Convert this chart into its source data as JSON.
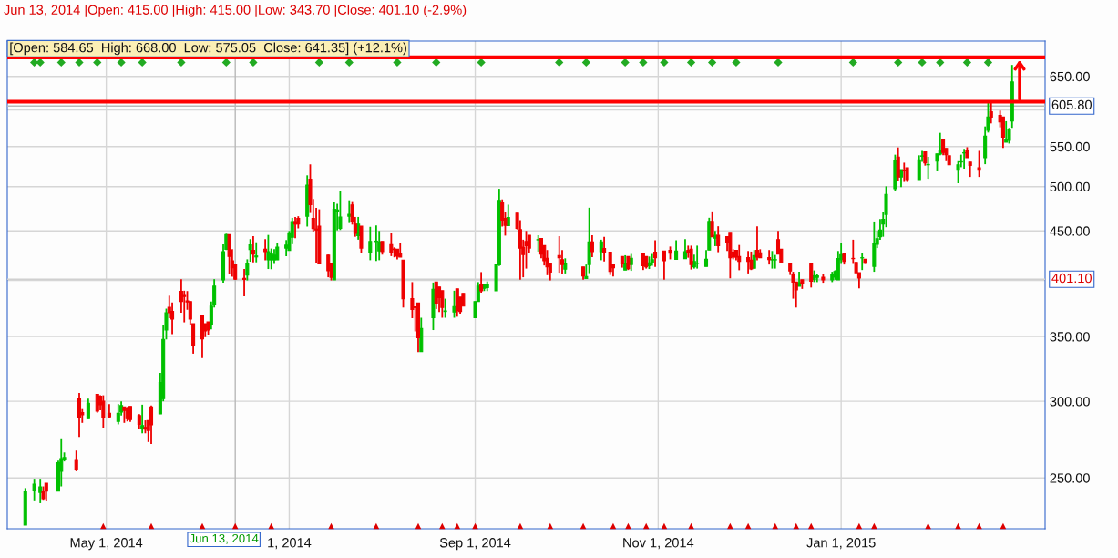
{
  "chart_data": {
    "type": "candlestick",
    "annotations": [
      "Jun 13, 2014 |Open: 415.00 |High: 415.00 |Low: 343.70 |Close: 401.10 (-2.9%)",
      "[Open: 584.65  High: 668.00  Low: 575.05  Close: 641.35] (+12.1%)"
    ],
    "log": "y",
    "grid": true,
    "xlim": [
      "2014-03-29",
      "2015-03-10"
    ],
    "xticks": [
      {
        "value": "2014-05-01",
        "label": "May 1, 2014"
      },
      {
        "value": "2014-07-01",
        "label": "1, 2014"
      },
      {
        "value": "2014-09-01",
        "label": "Sep 1, 2014"
      },
      {
        "value": "2014-11-01",
        "label": "Nov 1, 2014"
      },
      {
        "value": "2015-01-01",
        "label": "Jan 1, 2015"
      }
    ],
    "ylim": [
      221.5,
      707
    ],
    "yticks": [
      {
        "value": 250,
        "label": "250.00"
      },
      {
        "value": 300,
        "label": "300.00"
      },
      {
        "value": 350,
        "label": "350.00"
      },
      {
        "value": 400,
        "label": null
      },
      {
        "value": 450,
        "label": "450.00"
      },
      {
        "value": 500,
        "label": "500.00"
      },
      {
        "value": 550,
        "label": "550.00"
      },
      {
        "value": 600,
        "label": null
      },
      {
        "value": 650,
        "label": "650.00"
      }
    ],
    "ref_lines": [
      {
        "axis": "y",
        "value": 680,
        "color": "#ff0000"
      },
      {
        "axis": "y",
        "value": 612,
        "color": "#ff0000"
      },
      {
        "axis": "y",
        "value": 605.8,
        "label": "605.80",
        "color": "#b8b8b8"
      },
      {
        "axis": "y",
        "value": 401.1,
        "label": "401.10",
        "color": "#d0d0d0"
      },
      {
        "axis": "x",
        "value": "2014-06-13",
        "label": "Jun 13, 2014",
        "color": "#b8b8b8"
      }
    ],
    "series": [
      {
        "color": "#00c000",
        "x": [
          "2014-04-04",
          "2014-04-07",
          "2014-04-09",
          "2014-04-15",
          "2014-04-16",
          "2014-04-17",
          "2014-04-25",
          "2014-05-05",
          "2014-05-06",
          "2014-05-13",
          "2014-05-19",
          "2014-05-20",
          "2014-05-21",
          "2014-06-05",
          "2014-06-06",
          "2014-06-09",
          "2014-06-10",
          "2014-06-17",
          "2014-06-18",
          "2014-06-20",
          "2014-06-24",
          "2014-06-25",
          "2014-06-26",
          "2014-06-27",
          "2014-06-30",
          "2014-07-01",
          "2014-07-02",
          "2014-07-07",
          "2014-07-16",
          "2014-07-17",
          "2014-07-18",
          "2014-07-21",
          "2014-07-24",
          "2014-07-28",
          "2014-07-30",
          "2014-07-31",
          "2014-08-14",
          "2014-08-18",
          "2014-08-22",
          "2014-08-25",
          "2014-09-01",
          "2014-09-02",
          "2014-09-04",
          "2014-09-05",
          "2014-09-08",
          "2014-09-09",
          "2014-09-12",
          "2014-09-22",
          "2014-10-01",
          "2014-10-08",
          "2014-10-09",
          "2014-10-13",
          "2014-10-21",
          "2014-10-23",
          "2014-10-29",
          "2014-10-30",
          "2014-11-07",
          "2014-11-10",
          "2014-11-13",
          "2014-11-14",
          "2014-11-17",
          "2014-11-18",
          "2014-11-20",
          "2014-12-03",
          "2014-12-09",
          "2014-12-10",
          "2014-12-18",
          "2014-12-23",
          "2014-12-24",
          "2014-12-29",
          "2014-12-30",
          "2014-12-31",
          "2015-01-01",
          "2015-01-08",
          "2015-01-12",
          "2015-01-13",
          "2015-01-14",
          "2015-01-15",
          "2015-01-16",
          "2015-01-19",
          "2015-01-21",
          "2015-01-27",
          "2015-01-28",
          "2015-01-30",
          "2015-02-02",
          "2015-02-03",
          "2015-02-09",
          "2015-02-10",
          "2015-02-11",
          "2015-02-18",
          "2015-02-19",
          "2015-02-25",
          "2015-02-26",
          "2015-02-27"
        ],
        "ohlc": [
          [
            223.5,
            244,
            223.5,
            242
          ],
          [
            242.7,
            249.5,
            237,
            246.3
          ],
          [
            241.5,
            249.5,
            235.4,
            244.7
          ],
          [
            242.2,
            260.5,
            242.2,
            259.2
          ],
          [
            254,
            274.7,
            245,
            261.7
          ],
          [
            261,
            265.6,
            260,
            262.4
          ],
          [
            287.8,
            301.9,
            287.8,
            298.6
          ],
          [
            286,
            298,
            284,
            291.5
          ],
          [
            292.5,
            300,
            290,
            297
          ],
          [
            281.6,
            297.6,
            278,
            283.2
          ],
          [
            291.1,
            321,
            291.1,
            313.7
          ],
          [
            301.9,
            359.6,
            300,
            347.6
          ],
          [
            355.4,
            374,
            347.6,
            370.4
          ],
          [
            360.2,
            380.4,
            356,
            376.3
          ],
          [
            377.7,
            401.2,
            375,
            394.6
          ],
          [
            400.6,
            435.8,
            397.8,
            428.4
          ],
          [
            430.8,
            447,
            430,
            446
          ],
          [
            405.2,
            420.6,
            400,
            416.6
          ],
          [
            430.5,
            441.3,
            418.2,
            435.2
          ],
          [
            423,
            438,
            417.6,
            424
          ],
          [
            420,
            445.7,
            411,
            428.4
          ],
          [
            420,
            431.5,
            410.8,
            426.5
          ],
          [
            420,
            430.8,
            416,
            424.7
          ],
          [
            420,
            437,
            420,
            433
          ],
          [
            432,
            440.3,
            423.7,
            435
          ],
          [
            429.6,
            450,
            429.6,
            448
          ],
          [
            443.2,
            464.2,
            436,
            460
          ],
          [
            465.9,
            513.6,
            454.7,
            501.9
          ],
          [
            400.6,
            482,
            400.6,
            473.7
          ],
          [
            471,
            480,
            450.6,
            473
          ],
          [
            452.7,
            495,
            451,
            465.2
          ],
          [
            465.9,
            484,
            458.5,
            468
          ],
          [
            445,
            465.2,
            440.7,
            457.4
          ],
          [
            427.4,
            454.4,
            419.7,
            438.9
          ],
          [
            438.8,
            456,
            419,
            439.2
          ],
          [
            429,
            450,
            419.7,
            438.3
          ],
          [
            337.7,
            366,
            337.7,
            356.7
          ],
          [
            366,
            398,
            355.4,
            391.7
          ],
          [
            371.5,
            383,
            366,
            372
          ],
          [
            371,
            390.3,
            366,
            375.8
          ],
          [
            366,
            380.4,
            366,
            380.4
          ],
          [
            380.4,
            398.4,
            380.4,
            394.6
          ],
          [
            392.5,
            396.2,
            390,
            396.2
          ],
          [
            393.3,
            399,
            390,
            396.5
          ],
          [
            390.3,
            415.1,
            390.3,
            415.1
          ],
          [
            415.1,
            497.4,
            414,
            483.8
          ],
          [
            455.7,
            479,
            455.7,
            464.5
          ],
          [
            440.5,
            445.4,
            428.4,
            440.8
          ],
          [
            410.8,
            421.6,
            406.7,
            416
          ],
          [
            401.8,
            415.4,
            401.8,
            403.7
          ],
          [
            415.4,
            475.5,
            407,
            438.3
          ],
          [
            428.4,
            440.7,
            419.7,
            438.3
          ],
          [
            410,
            424.7,
            410,
            416
          ],
          [
            415.4,
            426,
            409.2,
            421.6
          ],
          [
            414.2,
            423.4,
            411,
            417
          ],
          [
            417.9,
            426,
            414.2,
            420.3
          ],
          [
            420.6,
            440,
            420.6,
            429
          ],
          [
            421.3,
            441.3,
            421.3,
            428.4
          ],
          [
            413,
            425.3,
            411.4,
            418.5
          ],
          [
            416.5,
            434.5,
            411.4,
            416.8
          ],
          [
            413.5,
            430,
            413.5,
            420.6
          ],
          [
            430,
            464.3,
            430,
            460.2
          ],
          [
            442.3,
            450,
            434,
            445.4
          ],
          [
            411.7,
            430,
            411.7,
            424.4
          ],
          [
            420,
            429,
            411.4,
            420.3
          ],
          [
            420,
            425,
            411.4,
            420.3
          ],
          [
            394.5,
            408.3,
            394.5,
            397.8
          ],
          [
            401,
            409.6,
            398.4,
            404.6
          ],
          [
            403,
            406.5,
            398.4,
            404.3
          ],
          [
            400.6,
            408.3,
            398.4,
            405.9
          ],
          [
            403.1,
            409.8,
            400.6,
            408.6
          ],
          [
            400.6,
            429,
            400.6,
            421.3
          ],
          [
            420.3,
            437.6,
            416,
            425.3
          ],
          [
            422,
            426.8,
            410,
            422.2
          ],
          [
            413.6,
            460.2,
            408.3,
            437
          ],
          [
            435.8,
            450,
            432,
            441.7
          ],
          [
            443.8,
            463,
            440.7,
            451
          ],
          [
            457.5,
            471,
            443.8,
            462.6
          ],
          [
            468,
            500.3,
            454,
            490.8
          ],
          [
            497.6,
            539.5,
            494.9,
            532
          ],
          [
            511.6,
            520.7,
            499.3,
            520.7
          ],
          [
            508.6,
            538.7,
            508.6,
            533
          ],
          [
            537.5,
            544.4,
            530.4,
            538
          ],
          [
            526.7,
            536.8,
            509.4,
            527
          ],
          [
            531.2,
            540.6,
            519.6,
            540.6
          ],
          [
            540.2,
            568.3,
            538.7,
            545.5
          ],
          [
            521,
            531.2,
            504,
            526.7
          ],
          [
            530.2,
            539.5,
            523.6,
            530.5
          ],
          [
            541.7,
            547,
            521.8,
            542
          ],
          [
            535.7,
            577,
            527.4,
            563.7
          ],
          [
            571.6,
            610,
            568.7,
            590
          ],
          [
            555.8,
            584.2,
            555.8,
            560
          ],
          [
            558.3,
            575,
            554,
            572
          ],
          [
            584.65,
            668,
            575.05,
            641.35
          ]
        ]
      },
      {
        "color": "#ee0000",
        "x": [
          "2014-04-10",
          "2014-04-11",
          "2014-04-21",
          "2014-04-22",
          "2014-04-23",
          "2014-04-28",
          "2014-04-29",
          "2014-04-30",
          "2014-05-02",
          "2014-05-07",
          "2014-05-08",
          "2014-05-09",
          "2014-05-12",
          "2014-05-14",
          "2014-05-15",
          "2014-05-16",
          "2014-05-22",
          "2014-05-23",
          "2014-05-26",
          "2014-05-27",
          "2014-05-28",
          "2014-05-29",
          "2014-05-30",
          "2014-06-02",
          "2014-06-03",
          "2014-06-04",
          "2014-06-11",
          "2014-06-12",
          "2014-06-13",
          "2014-06-16",
          "2014-06-19",
          "2014-06-23",
          "2014-07-03",
          "2014-07-04",
          "2014-07-08",
          "2014-07-09",
          "2014-07-10",
          "2014-07-11",
          "2014-07-14",
          "2014-07-15",
          "2014-07-22",
          "2014-07-23",
          "2014-07-25",
          "2014-08-01",
          "2014-08-04",
          "2014-08-05",
          "2014-08-06",
          "2014-08-07",
          "2014-08-08",
          "2014-08-11",
          "2014-08-12",
          "2014-08-13",
          "2014-08-19",
          "2014-08-20",
          "2014-08-21",
          "2014-08-26",
          "2014-08-27",
          "2014-08-28",
          "2014-09-03",
          "2014-09-10",
          "2014-09-11",
          "2014-09-15",
          "2014-09-16",
          "2014-09-17",
          "2014-09-18",
          "2014-09-19",
          "2014-09-23",
          "2014-09-24",
          "2014-09-25",
          "2014-09-26",
          "2014-09-29",
          "2014-09-30",
          "2014-10-07",
          "2014-10-10",
          "2014-10-14",
          "2014-10-16",
          "2014-10-17",
          "2014-10-20",
          "2014-10-22",
          "2014-10-27",
          "2014-10-28",
          "2014-10-31",
          "2014-11-03",
          "2014-11-05",
          "2014-11-11",
          "2014-11-12",
          "2014-11-19",
          "2014-11-21",
          "2014-11-24",
          "2014-11-25",
          "2014-11-26",
          "2014-11-27",
          "2014-11-28",
          "2014-12-01",
          "2014-12-02",
          "2014-12-04",
          "2014-12-05",
          "2014-12-08",
          "2014-12-11",
          "2014-12-12",
          "2014-12-15",
          "2014-12-16",
          "2014-12-17",
          "2014-12-19",
          "2014-12-22",
          "2014-12-26",
          "2015-01-02",
          "2015-01-05",
          "2015-01-06",
          "2015-01-07",
          "2015-01-09",
          "2015-01-20",
          "2015-01-22",
          "2015-01-23",
          "2015-01-29",
          "2015-02-04",
          "2015-02-05",
          "2015-02-06",
          "2015-02-12",
          "2015-02-13",
          "2015-02-16",
          "2015-02-20",
          "2015-02-23",
          "2015-02-24"
        ],
        "ohlc": [
          [
            242,
            245,
            237.3,
            238
          ],
          [
            246.8,
            246.8,
            236.4,
            242.2
          ],
          [
            261.1,
            266.8,
            254,
            255.4
          ],
          [
            302.4,
            306,
            275.6,
            289
          ],
          [
            292,
            294.5,
            285,
            290.5
          ],
          [
            305,
            305,
            292,
            293
          ],
          [
            303.6,
            304.3,
            293.6,
            297.6
          ],
          [
            300,
            304.3,
            281.8,
            289
          ],
          [
            291.5,
            298,
            288.5,
            289.1
          ],
          [
            296,
            296,
            285,
            293.5
          ],
          [
            295,
            296,
            286,
            287.8
          ],
          [
            296.4,
            296.4,
            285.6,
            287.2
          ],
          [
            290,
            291,
            281,
            284
          ],
          [
            282,
            286.7,
            278,
            280.7
          ],
          [
            286.5,
            286.5,
            272.3,
            279.8
          ],
          [
            296,
            297,
            271,
            283.7
          ],
          [
            375.2,
            385.7,
            365.6,
            370.4
          ],
          [
            371.5,
            379.5,
            352,
            364.8
          ],
          [
            389.8,
            401.2,
            370.4,
            380.4
          ],
          [
            386,
            390.3,
            362,
            385
          ],
          [
            381,
            390,
            373,
            380
          ],
          [
            380.4,
            380.4,
            359.4,
            364.8
          ],
          [
            360.8,
            360.8,
            336,
            342.4
          ],
          [
            368,
            368,
            332.5,
            348
          ],
          [
            360.8,
            360.8,
            349.5,
            354.8
          ],
          [
            362.4,
            362.4,
            351.6,
            355.4
          ],
          [
            446,
            446,
            405.9,
            423.5
          ],
          [
            419.1,
            430.8,
            403.6,
            412.3
          ],
          [
            415,
            415,
            400.6,
            401.1
          ],
          [
            402,
            411,
            385.2,
            401
          ],
          [
            429.6,
            444.4,
            417.6,
            425.9
          ],
          [
            430.8,
            441.3,
            419.6,
            428.4
          ],
          [
            460,
            465.2,
            442.3,
            457.4
          ],
          [
            463.5,
            466,
            452.7,
            457.4
          ],
          [
            509,
            527.2,
            469.6,
            479
          ],
          [
            463.5,
            485.5,
            449.4,
            452.4
          ],
          [
            452,
            475.3,
            417.2,
            451
          ],
          [
            455,
            473.7,
            416,
            416
          ],
          [
            424.7,
            425.3,
            403,
            409.3
          ],
          [
            416.6,
            416.6,
            400,
            403
          ],
          [
            478.7,
            483,
            456.8,
            460.8
          ],
          [
            457.4,
            465.2,
            443.8,
            447.5
          ],
          [
            455,
            455,
            426.8,
            432
          ],
          [
            438.9,
            438.9,
            425.3,
            428.4
          ],
          [
            435.5,
            447.5,
            423.8,
            427.8
          ],
          [
            431,
            432.7,
            422.6,
            430.5
          ],
          [
            430.8,
            430.8,
            420.6,
            423.7
          ],
          [
            426.2,
            437,
            422.8,
            422.8
          ],
          [
            419.8,
            419.8,
            375,
            383
          ],
          [
            383,
            398.4,
            365.6,
            373.2
          ],
          [
            375.6,
            375.6,
            354.3,
            375
          ],
          [
            379,
            379,
            337.3,
            349
          ],
          [
            398.4,
            398.4,
            373.7,
            379
          ],
          [
            393.8,
            393.8,
            371,
            383.9
          ],
          [
            390.3,
            390.3,
            366,
            375
          ],
          [
            392,
            392,
            366.9,
            372.3
          ],
          [
            384.4,
            384.4,
            369.6,
            371.5
          ],
          [
            387.9,
            387.9,
            376.3,
            376.3
          ],
          [
            396.5,
            408,
            388.5,
            390.3
          ],
          [
            482,
            485,
            454.7,
            461.8
          ],
          [
            463.5,
            471,
            445,
            456
          ],
          [
            469.4,
            469.4,
            451.6,
            452.7
          ],
          [
            451.3,
            461.5,
            400.6,
            432
          ],
          [
            433,
            440.7,
            403,
            425.3
          ],
          [
            438.9,
            450,
            411.4,
            434.5
          ],
          [
            445.4,
            445.4,
            426.8,
            432
          ],
          [
            442,
            442,
            421.7,
            425.9
          ],
          [
            434.5,
            434.5,
            414.5,
            419.1
          ],
          [
            421.6,
            430,
            405,
            413
          ],
          [
            416,
            416,
            400,
            408
          ],
          [
            424.4,
            444.4,
            407.4,
            422.2
          ],
          [
            420.3,
            430,
            406.7,
            415.4
          ],
          [
            413,
            413,
            400.6,
            404.3
          ],
          [
            438.3,
            445.4,
            422.8,
            428.4
          ],
          [
            431.5,
            443.8,
            418.5,
            427.8
          ],
          [
            427.8,
            427.8,
            405.2,
            408.6
          ],
          [
            415,
            415,
            403.7,
            412.3
          ],
          [
            423.4,
            423.4,
            412.3,
            416
          ],
          [
            423.4,
            423.4,
            410,
            411.4
          ],
          [
            426.8,
            426.8,
            410,
            414.2
          ],
          [
            423.4,
            423.4,
            411.4,
            413
          ],
          [
            427.8,
            440,
            413,
            422.2
          ],
          [
            429,
            429,
            400.6,
            419.1
          ],
          [
            429.6,
            433.6,
            420.6,
            426.8
          ],
          [
            429.6,
            434.5,
            422.2,
            427.8
          ],
          [
            430.8,
            434.5,
            410.5,
            415.4
          ],
          [
            460.2,
            471.4,
            443.8,
            443.8
          ],
          [
            445.4,
            455,
            427.8,
            434.5
          ],
          [
            443.8,
            443.8,
            429,
            437.6
          ],
          [
            448.4,
            448.4,
            402,
            422.2
          ],
          [
            427.8,
            430.8,
            420.6,
            422.8
          ],
          [
            429.6,
            429.6,
            419.7,
            422.8
          ],
          [
            423.4,
            435.2,
            409.8,
            418.5
          ],
          [
            422.2,
            429,
            406.7,
            418.5
          ],
          [
            419.7,
            428.4,
            410,
            411
          ],
          [
            429.6,
            455,
            419.7,
            422.8
          ],
          [
            427.1,
            430.8,
            422.2,
            422.2
          ],
          [
            422.2,
            430,
            415.4,
            420.3
          ],
          [
            440.7,
            450,
            425.9,
            425.9
          ],
          [
            430.8,
            430.8,
            417.6,
            417.6
          ],
          [
            416,
            416,
            405.2,
            409
          ],
          [
            406,
            408.3,
            383,
            398.4
          ],
          [
            398.4,
            398.4,
            375,
            391
          ],
          [
            400.6,
            400.6,
            392,
            396.9
          ],
          [
            416,
            416,
            393.3,
            399.2
          ],
          [
            403.1,
            406,
            397.8,
            400.6
          ],
          [
            426.8,
            426.8,
            415.4,
            418.5
          ],
          [
            421.5,
            440.7,
            416,
            421.3
          ],
          [
            417.6,
            417.6,
            407.4,
            407.4
          ],
          [
            407.4,
            407.4,
            392.5,
            402.2
          ],
          [
            420.6,
            420.6,
            416,
            416.6
          ],
          [
            536.5,
            548.9,
            506.7,
            511.6
          ],
          [
            520,
            529.3,
            505.6,
            519.5
          ],
          [
            523,
            523,
            505.6,
            508.6
          ],
          [
            543.2,
            543.2,
            525.6,
            529
          ],
          [
            560,
            560,
            538.7,
            542.5
          ],
          [
            547.7,
            547.7,
            531.2,
            539.5
          ],
          [
            538,
            538,
            526.7,
            526.7
          ],
          [
            544.4,
            549.2,
            535.7,
            535.7
          ],
          [
            530,
            530,
            511.6,
            526
          ],
          [
            523,
            544.4,
            511.6,
            521
          ],
          [
            597.5,
            610.4,
            581.2,
            590
          ],
          [
            592.5,
            599.2,
            575.8,
            583.3
          ],
          [
            590,
            590,
            548.1,
            562.5
          ]
        ]
      },
      {
        "type": "scatter",
        "color": "#22aa22",
        "marker": "diamond",
        "x": [
          "2014-04-07",
          "2014-04-09",
          "2014-04-16",
          "2014-04-22",
          "2014-04-28",
          "2014-05-06",
          "2014-05-13",
          "2014-05-26",
          "2014-06-10",
          "2014-06-19",
          "2014-07-11",
          "2014-07-21",
          "2014-08-06",
          "2014-08-19",
          "2014-09-03",
          "2014-09-29",
          "2014-10-08",
          "2014-10-21",
          "2014-10-27",
          "2014-11-03",
          "2014-11-12",
          "2014-11-19",
          "2014-11-27",
          "2014-12-11",
          "2015-01-05",
          "2015-01-20",
          "2015-01-28",
          "2015-02-03",
          "2015-02-12",
          "2015-02-19"
        ],
        "values": [
          672,
          672,
          672,
          672,
          672,
          672,
          672,
          672,
          672,
          672,
          672,
          672,
          672,
          672,
          672,
          672,
          672,
          672,
          672,
          672,
          672,
          672,
          672,
          672,
          672,
          672,
          672,
          672,
          672,
          672
        ]
      },
      {
        "type": "scatter",
        "color": "#dd0000",
        "marker": "triangle",
        "x": [
          "2014-04-30",
          "2014-05-16",
          "2014-06-02",
          "2014-06-13",
          "2014-06-25",
          "2014-07-15",
          "2014-07-30",
          "2014-08-13",
          "2014-08-21",
          "2014-08-26",
          "2014-09-01",
          "2014-09-16",
          "2014-09-26",
          "2014-10-07",
          "2014-10-17",
          "2014-10-22",
          "2014-10-28",
          "2014-11-03",
          "2014-11-12",
          "2014-11-25",
          "2014-12-01",
          "2014-12-10",
          "2014-12-17",
          "2014-12-22",
          "2015-01-07",
          "2015-01-12",
          "2015-01-30",
          "2015-02-09",
          "2015-02-16",
          "2015-02-24"
        ],
        "values": [
          223,
          223,
          223,
          223,
          223,
          223,
          223,
          223,
          223,
          223,
          223,
          223,
          223,
          223,
          223,
          223,
          223,
          223,
          223,
          223,
          223,
          223,
          223,
          223,
          223,
          223,
          223,
          223,
          223,
          223
        ]
      }
    ]
  }
}
